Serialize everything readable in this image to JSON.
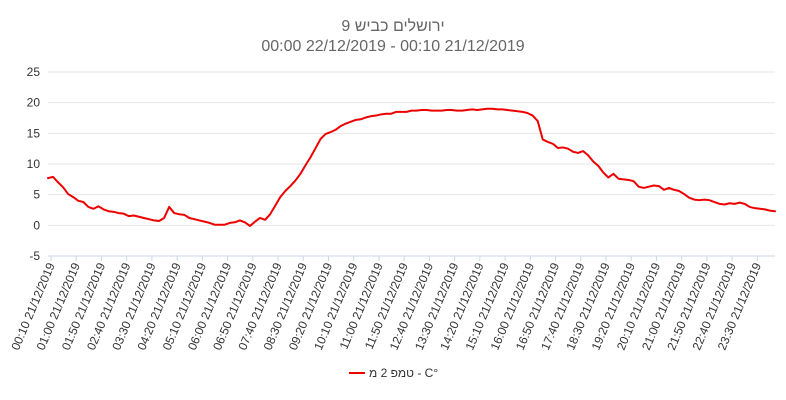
{
  "chart_data": {
    "type": "line",
    "title": "ירושלים כביש 9",
    "subtitle": "00:00 22/12/2019  -  00:10 21/12/2019",
    "xlabel": "",
    "ylabel": "",
    "ylim": [
      -5,
      25
    ],
    "yticks": [
      -5,
      0,
      5,
      10,
      15,
      20,
      25
    ],
    "grid": true,
    "legend": "bottom-center",
    "x_tick_labels": [
      "00:10 21/12/2019",
      "01:00 21/12/2019",
      "01:50 21/12/2019",
      "02:40 21/12/2019",
      "03:30 21/12/2019",
      "04:20 21/12/2019",
      "05:10 21/12/2019",
      "06:00 21/12/2019",
      "06:50 21/12/2019",
      "07:40 21/12/2019",
      "08:30 21/12/2019",
      "09:20 21/12/2019",
      "10:10 21/12/2019",
      "11:00 21/12/2019",
      "11:50 21/12/2019",
      "12:40 21/12/2019",
      "13:30 21/12/2019",
      "14:20 21/12/2019",
      "15:10 21/12/2019",
      "16:00 21/12/2019",
      "16:50 21/12/2019",
      "17:40 21/12/2019",
      "18:30 21/12/2019",
      "19:20 21/12/2019",
      "20:10 21/12/2019",
      "21:00 21/12/2019",
      "21:50 21/12/2019",
      "22:40 21/12/2019",
      "23:30 21/12/2019"
    ],
    "series": [
      {
        "name": "טמפ 2 מ - C°",
        "color": "#ee0000",
        "values": [
          7.7,
          7.9,
          7.0,
          6.2,
          5.1,
          4.6,
          4.0,
          3.8,
          3.0,
          2.7,
          3.1,
          2.6,
          2.3,
          2.2,
          2.0,
          1.9,
          1.5,
          1.6,
          1.4,
          1.2,
          1.0,
          0.8,
          0.7,
          1.2,
          3.0,
          2.0,
          1.8,
          1.7,
          1.2,
          1.0,
          0.8,
          0.6,
          0.4,
          0.1,
          0.1,
          0.1,
          0.4,
          0.5,
          0.8,
          0.5,
          -0.1,
          0.6,
          1.2,
          0.9,
          1.8,
          3.2,
          4.6,
          5.6,
          6.4,
          7.3,
          8.4,
          9.8,
          11.1,
          12.6,
          14.1,
          14.9,
          15.2,
          15.6,
          16.2,
          16.6,
          16.9,
          17.2,
          17.3,
          17.6,
          17.8,
          17.9,
          18.1,
          18.2,
          18.2,
          18.5,
          18.5,
          18.5,
          18.7,
          18.7,
          18.8,
          18.8,
          18.7,
          18.7,
          18.7,
          18.8,
          18.8,
          18.7,
          18.7,
          18.8,
          18.9,
          18.8,
          18.9,
          19.0,
          19.0,
          18.9,
          18.9,
          18.8,
          18.7,
          18.6,
          18.5,
          18.3,
          17.9,
          17.0,
          14.0,
          13.6,
          13.3,
          12.6,
          12.7,
          12.5,
          12.0,
          11.8,
          12.1,
          11.4,
          10.4,
          9.7,
          8.6,
          7.8,
          8.4,
          7.6,
          7.5,
          7.4,
          7.2,
          6.3,
          6.1,
          6.3,
          6.5,
          6.4,
          5.8,
          6.1,
          5.8,
          5.6,
          5.1,
          4.5,
          4.2,
          4.1,
          4.2,
          4.1,
          3.8,
          3.5,
          3.4,
          3.6,
          3.5,
          3.7,
          3.5,
          3.0,
          2.8,
          2.7,
          2.6,
          2.4,
          2.3
        ]
      }
    ]
  }
}
